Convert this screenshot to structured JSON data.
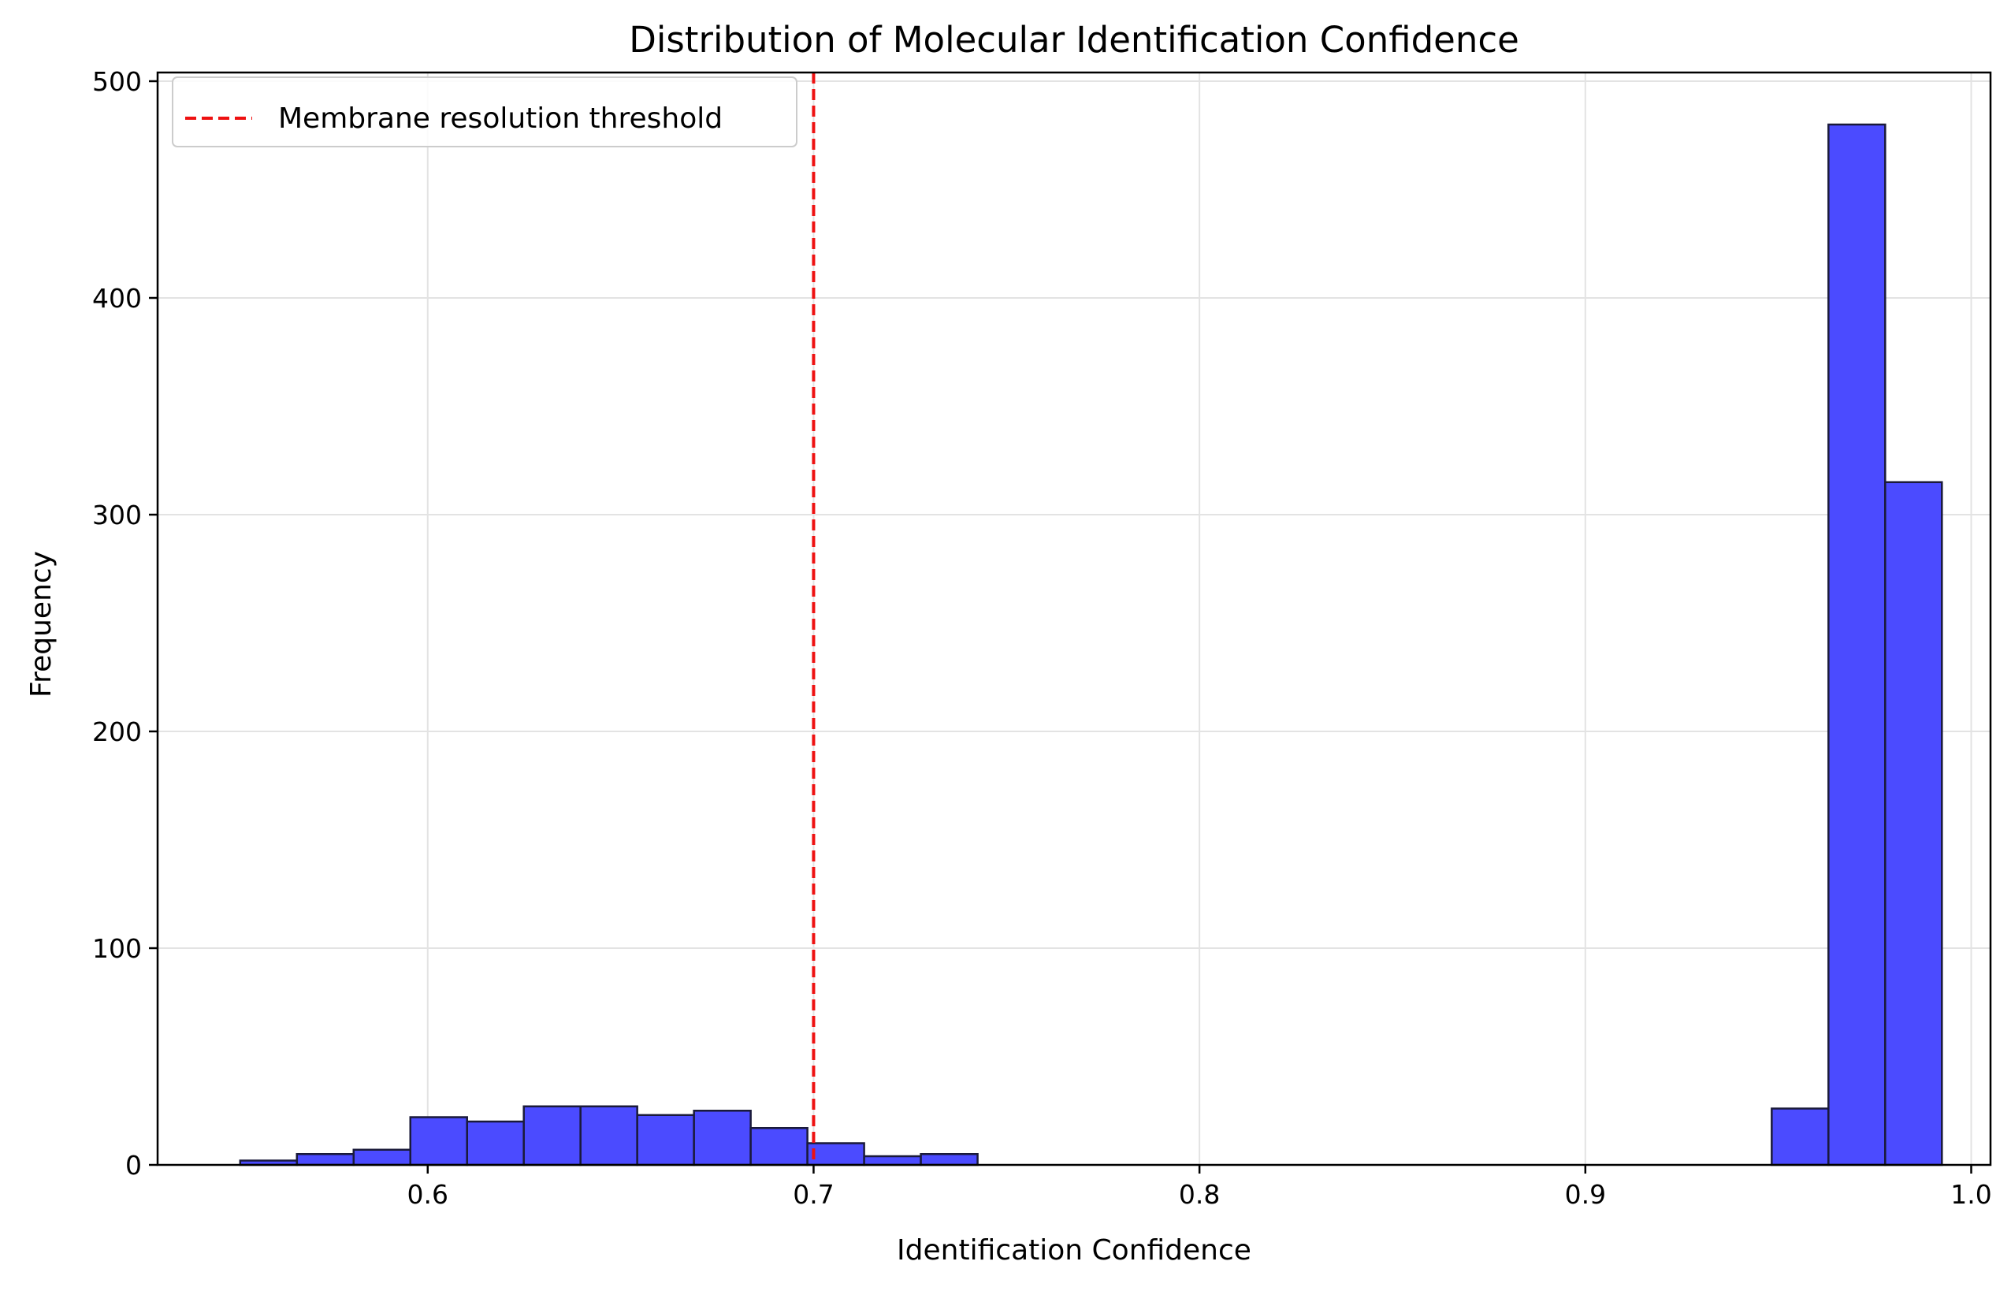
{
  "chart_data": {
    "type": "bar",
    "title": "Distribution of Molecular Identification Confidence",
    "xlabel": "Identification Confidence",
    "ylabel": "Frequency",
    "xlim": [
      0.53,
      1.005
    ],
    "ylim": [
      0,
      504
    ],
    "xticks": [
      {
        "value": 0.6,
        "label": "0.6"
      },
      {
        "value": 0.7,
        "label": "0.7"
      },
      {
        "value": 0.8,
        "label": "0.8"
      },
      {
        "value": 0.9,
        "label": "0.9"
      },
      {
        "value": 1.0,
        "label": "1.0"
      }
    ],
    "yticks": [
      {
        "value": 0,
        "label": "0"
      },
      {
        "value": 100,
        "label": "100"
      },
      {
        "value": 200,
        "label": "200"
      },
      {
        "value": 300,
        "label": "300"
      },
      {
        "value": 400,
        "label": "400"
      },
      {
        "value": 500,
        "label": "500"
      }
    ],
    "grid": true,
    "bin_edges": [
      0.5514,
      0.5661,
      0.5808,
      0.5955,
      0.6102,
      0.6249,
      0.6396,
      0.6543,
      0.669,
      0.6837,
      0.6984,
      0.7131,
      0.7278,
      0.7425,
      0.7572,
      0.7719,
      0.7866,
      0.8013,
      0.816,
      0.8307,
      0.8454,
      0.8601,
      0.8748,
      0.8895,
      0.9042,
      0.9189,
      0.9336,
      0.9483,
      0.963,
      0.9777,
      0.9924
    ],
    "counts": [
      2,
      5,
      7,
      22,
      20,
      27,
      27,
      23,
      25,
      17,
      10,
      4,
      5,
      0,
      0,
      0,
      0,
      0,
      0,
      0,
      0,
      0,
      0,
      0,
      0,
      0,
      0,
      26,
      480,
      315
    ],
    "bar_color": "#4b4bff",
    "bar_edge_color": "#1a1a3a",
    "threshold": {
      "value": 0.7,
      "label": "Membrane resolution threshold",
      "color": "#ee1111",
      "style": "dashed"
    },
    "legend": {
      "position": "top-left",
      "entries": [
        "Membrane resolution threshold"
      ]
    }
  }
}
